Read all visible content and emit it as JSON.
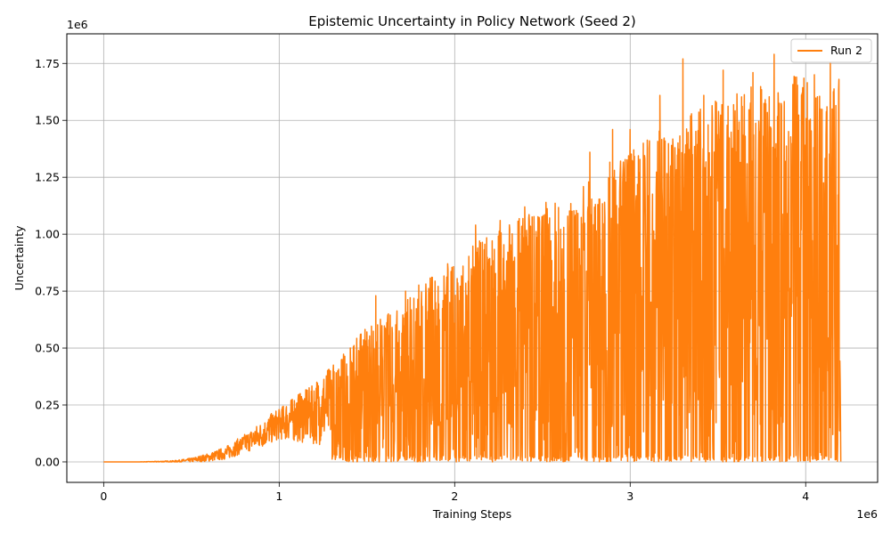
{
  "chart_data": {
    "type": "line",
    "title": "Epistemic Uncertainty in Policy Network (Seed 2)",
    "xlabel": "Training Steps",
    "ylabel": "Uncertainty",
    "x_offset_label": "1e6",
    "y_offset_label": "1e6",
    "xlim": [
      -210000,
      4410000
    ],
    "ylim": [
      -90000,
      1880000
    ],
    "x_ticks": [
      0,
      1000000,
      2000000,
      3000000,
      4000000
    ],
    "x_tick_labels": [
      "0",
      "1",
      "2",
      "3",
      "4"
    ],
    "y_ticks": [
      0,
      250000,
      500000,
      750000,
      1000000,
      1250000,
      1500000,
      1750000
    ],
    "y_tick_labels": [
      "0.00",
      "0.25",
      "0.50",
      "0.75",
      "1.00",
      "1.25",
      "1.50",
      "1.75"
    ],
    "grid": true,
    "legend_position": "top-right",
    "series": [
      {
        "name": "Run 2",
        "color": "#ff7f0e",
        "x": [
          0,
          200000,
          400000,
          500000,
          600000,
          700000,
          800000,
          900000,
          1000000,
          1100000,
          1200000,
          1300000,
          1400000,
          1500000,
          1600000,
          1700000,
          1800000,
          1900000,
          2000000,
          2100000,
          2200000,
          2300000,
          2400000,
          2500000,
          2600000,
          2700000,
          2800000,
          2900000,
          3000000,
          3100000,
          3200000,
          3300000,
          3400000,
          3500000,
          3600000,
          3700000,
          3800000,
          3900000,
          4000000,
          4100000,
          4200000
        ],
        "y_upper": [
          0,
          0,
          8000,
          20000,
          45000,
          80000,
          130000,
          190000,
          230000,
          290000,
          340000,
          420000,
          520000,
          600000,
          640000,
          700000,
          780000,
          830000,
          880000,
          950000,
          1000000,
          1050000,
          1100000,
          1120000,
          1150000,
          1200000,
          1250000,
          1330000,
          1380000,
          1420000,
          1480000,
          1550000,
          1560000,
          1600000,
          1620000,
          1650000,
          1680000,
          1690000,
          1700000,
          1710000,
          1700000
        ],
        "y_lower": [
          0,
          0,
          0,
          0,
          5000,
          15000,
          40000,
          60000,
          70000,
          40000,
          20000,
          10000,
          0,
          0,
          0,
          0,
          0,
          0,
          0,
          0,
          0,
          0,
          0,
          0,
          0,
          0,
          0,
          0,
          0,
          0,
          0,
          0,
          0,
          0,
          0,
          0,
          0,
          0,
          0,
          0,
          0
        ],
        "y_mean": [
          0,
          0,
          2000,
          8000,
          20000,
          40000,
          80000,
          120000,
          170000,
          200000,
          220000,
          260000,
          300000,
          340000,
          380000,
          420000,
          440000,
          460000,
          480000,
          520000,
          540000,
          560000,
          580000,
          600000,
          620000,
          650000,
          680000,
          720000,
          740000,
          770000,
          800000,
          820000,
          850000,
          870000,
          880000,
          900000,
          920000,
          930000,
          940000,
          950000,
          950000
        ],
        "peaks": [
          [
            1550000,
            730000
          ],
          [
            1720000,
            750000
          ],
          [
            1960000,
            870000
          ],
          [
            2120000,
            1040000
          ],
          [
            2260000,
            1060000
          ],
          [
            2400000,
            1120000
          ],
          [
            2520000,
            1140000
          ],
          [
            2770000,
            1360000
          ],
          [
            2900000,
            1460000
          ],
          [
            3000000,
            1460000
          ],
          [
            3110000,
            1410000
          ],
          [
            3170000,
            1610000
          ],
          [
            3300000,
            1770000
          ],
          [
            3420000,
            1610000
          ],
          [
            3530000,
            1720000
          ],
          [
            3700000,
            1710000
          ],
          [
            3820000,
            1790000
          ],
          [
            3940000,
            1690000
          ],
          [
            4050000,
            1700000
          ],
          [
            4140000,
            1750000
          ],
          [
            4190000,
            1680000
          ]
        ]
      }
    ]
  }
}
